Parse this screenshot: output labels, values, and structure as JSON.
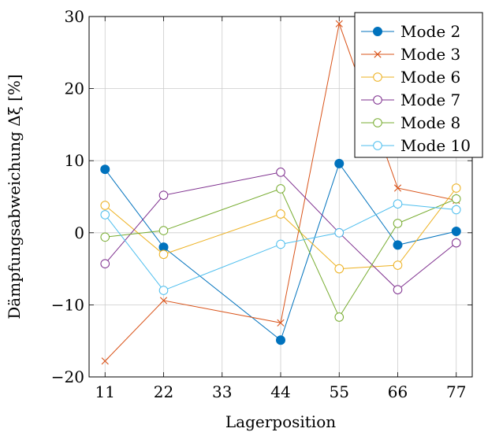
{
  "chart_data": {
    "type": "line",
    "title": "",
    "xlabel": "Lagerposition",
    "ylabel": "Dämpfungsabweichung Δξ [%]",
    "xlim": [
      8,
      80
    ],
    "ylim": [
      -20,
      30
    ],
    "x_ticks": [
      "11",
      "22",
      "33",
      "44",
      "55",
      "66",
      "77"
    ],
    "y_ticks": [
      "−20",
      "−10",
      "0",
      "10",
      "20",
      "30"
    ],
    "grid": true,
    "legend_position": "top-right",
    "x": [
      11,
      22,
      44,
      55,
      66,
      77
    ],
    "series": [
      {
        "name": "Mode 2",
        "color": "#0072bd",
        "marker": "filled-circle",
        "values": [
          8.8,
          -2.0,
          -14.9,
          9.6,
          -1.7,
          0.2
        ]
      },
      {
        "name": "Mode 3",
        "color": "#d95319",
        "marker": "cross",
        "values": [
          -17.8,
          -9.4,
          -12.5,
          29.0,
          6.2,
          4.5
        ]
      },
      {
        "name": "Mode 6",
        "color": "#edb120",
        "marker": "open-circle",
        "values": [
          3.8,
          -3.0,
          2.6,
          -5.0,
          -4.5,
          6.2
        ]
      },
      {
        "name": "Mode 7",
        "color": "#7e2f8e",
        "marker": "open-circle",
        "values": [
          -4.3,
          5.2,
          8.4,
          0.0,
          -7.9,
          -1.4
        ]
      },
      {
        "name": "Mode 8",
        "color": "#77ac30",
        "marker": "open-circle",
        "values": [
          -0.6,
          0.3,
          6.1,
          -11.7,
          1.3,
          4.7
        ]
      },
      {
        "name": "Mode 10",
        "color": "#4dbeee",
        "marker": "open-circle",
        "values": [
          2.5,
          -8.0,
          -1.6,
          0.0,
          4.0,
          3.2
        ]
      }
    ]
  }
}
